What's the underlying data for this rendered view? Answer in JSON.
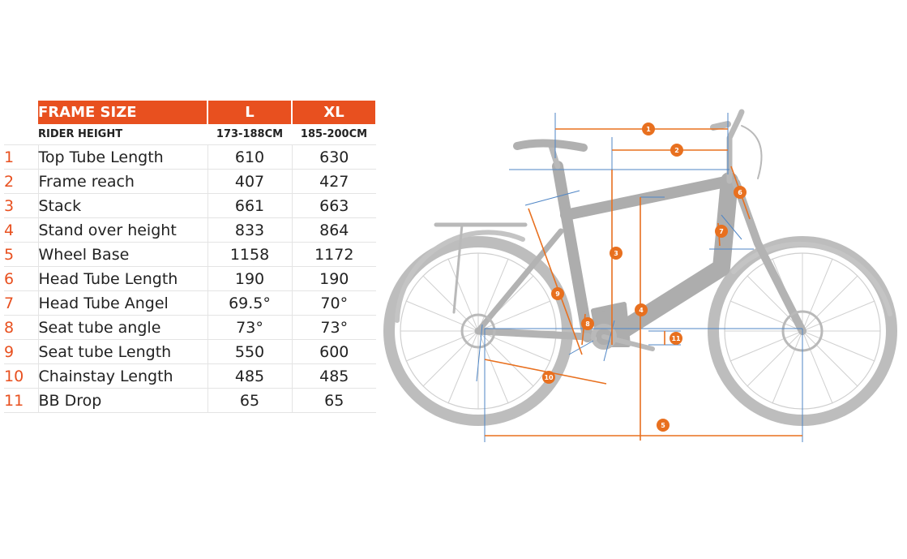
{
  "table": {
    "header": {
      "label": "FRAME SIZE",
      "sizes": [
        "L",
        "XL"
      ]
    },
    "rider": {
      "label": "RIDER HEIGHT",
      "values": [
        "173-188CM",
        "185-200CM"
      ]
    },
    "rows": [
      {
        "idx": "1",
        "label": "Top Tube Length",
        "l": "610",
        "xl": "630"
      },
      {
        "idx": "2",
        "label": "Frame reach",
        "l": "407",
        "xl": "427"
      },
      {
        "idx": "3",
        "label": "Stack",
        "l": "661",
        "xl": "663"
      },
      {
        "idx": "4",
        "label": "Stand over height",
        "l": "833",
        "xl": "864"
      },
      {
        "idx": "5",
        "label": "Wheel Base",
        "l": "1158",
        "xl": "1172"
      },
      {
        "idx": "6",
        "label": "Head Tube Length",
        "l": "190",
        "xl": "190"
      },
      {
        "idx": "7",
        "label": "Head Tube Angel",
        "l": "69.5°",
        "xl": "70°"
      },
      {
        "idx": "8",
        "label": "Seat tube angle",
        "l": "73°",
        "xl": "73°"
      },
      {
        "idx": "9",
        "label": "Seat tube Length",
        "l": "550",
        "xl": "600"
      },
      {
        "idx": "10",
        "label": "Chainstay Length",
        "l": "485",
        "xl": "485"
      },
      {
        "idx": "11",
        "label": "BB Drop",
        "l": "65",
        "xl": "65"
      }
    ]
  },
  "diagram": {
    "markers": [
      "1",
      "2",
      "3",
      "4",
      "5",
      "6",
      "7",
      "8",
      "9",
      "10",
      "11"
    ]
  },
  "colors": {
    "accent": "#e8501f",
    "bike": "#b9b9b9",
    "guide": "#4f86c6"
  }
}
